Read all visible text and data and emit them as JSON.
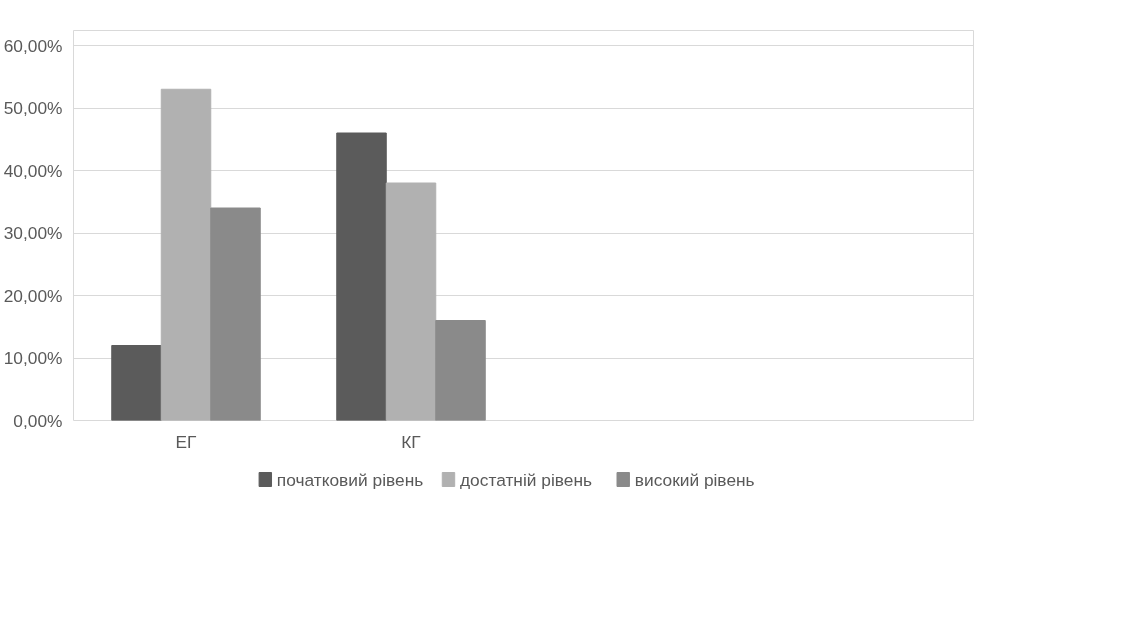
{
  "chart_data": {
    "type": "bar",
    "categories": [
      "ЕГ",
      "КГ",
      null,
      null
    ],
    "series": [
      {
        "name": "початковий рівень",
        "color": "#5b5b5b",
        "values": [
          12,
          46,
          null,
          null
        ]
      },
      {
        "name": "достатній рівень",
        "color": "#b1b1b1",
        "values": [
          53,
          38,
          null,
          null
        ]
      },
      {
        "name": "високий рівень",
        "color": "#8a8a8a",
        "values": [
          34,
          16,
          null,
          null
        ]
      }
    ],
    "ylim": [
      0,
      60
    ],
    "yticks": [
      {
        "value": 0,
        "label": "0,00%"
      },
      {
        "value": 10,
        "label": "10,00%"
      },
      {
        "value": 20,
        "label": "20,00%"
      },
      {
        "value": 30,
        "label": "30,00%"
      },
      {
        "value": 40,
        "label": "40,00%"
      },
      {
        "value": 50,
        "label": "50,00%"
      },
      {
        "value": 60,
        "label": "60,00%"
      }
    ],
    "grid": "y",
    "legend": "bottom"
  }
}
